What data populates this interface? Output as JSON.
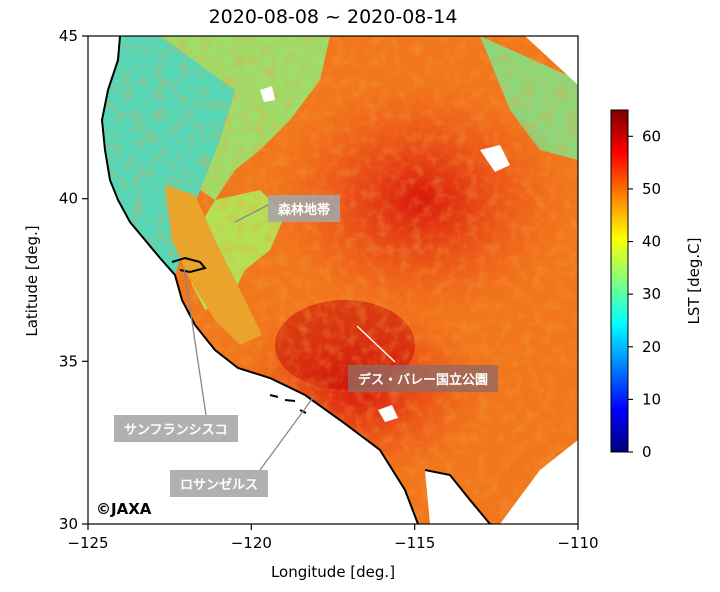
{
  "title": "2020-08-08 ~ 2020-08-14",
  "axes": {
    "xlabel": "Longitude [deg.]",
    "ylabel": "Latitude [deg.]",
    "xticks": [
      "−125",
      "−120",
      "−115",
      "−110"
    ],
    "yticks": [
      "30",
      "35",
      "40",
      "45"
    ]
  },
  "colorbar": {
    "label": "LST [deg.C]",
    "ticks": [
      "0",
      "10",
      "20",
      "30",
      "40",
      "50",
      "60"
    ],
    "range": [
      0,
      65
    ],
    "colormap": "jet"
  },
  "map_extent": {
    "lon": [
      -125,
      -110
    ],
    "lat": [
      30,
      45
    ]
  },
  "callouts": [
    {
      "id": "forest",
      "text": "森林地帯",
      "lon": -120.5,
      "lat": 39.3
    },
    {
      "id": "death-valley",
      "text": "デス・バレー国立公園",
      "lon": -116.9,
      "lat": 36.2
    },
    {
      "id": "san-francisco",
      "text": "サンフランシスコ",
      "lon": -122.4,
      "lat": 37.8
    },
    {
      "id": "los-angeles",
      "text": "ロサンゼルス",
      "lon": -118.2,
      "lat": 34.0
    }
  ],
  "copyright": "©JAXA",
  "colors": {
    "ocean": "#ffffff",
    "hot": "#e8361b",
    "warm": "#f58a1e",
    "mild": "#c9e14a",
    "cool": "#3fd2c6",
    "snow": "#ffffff"
  }
}
